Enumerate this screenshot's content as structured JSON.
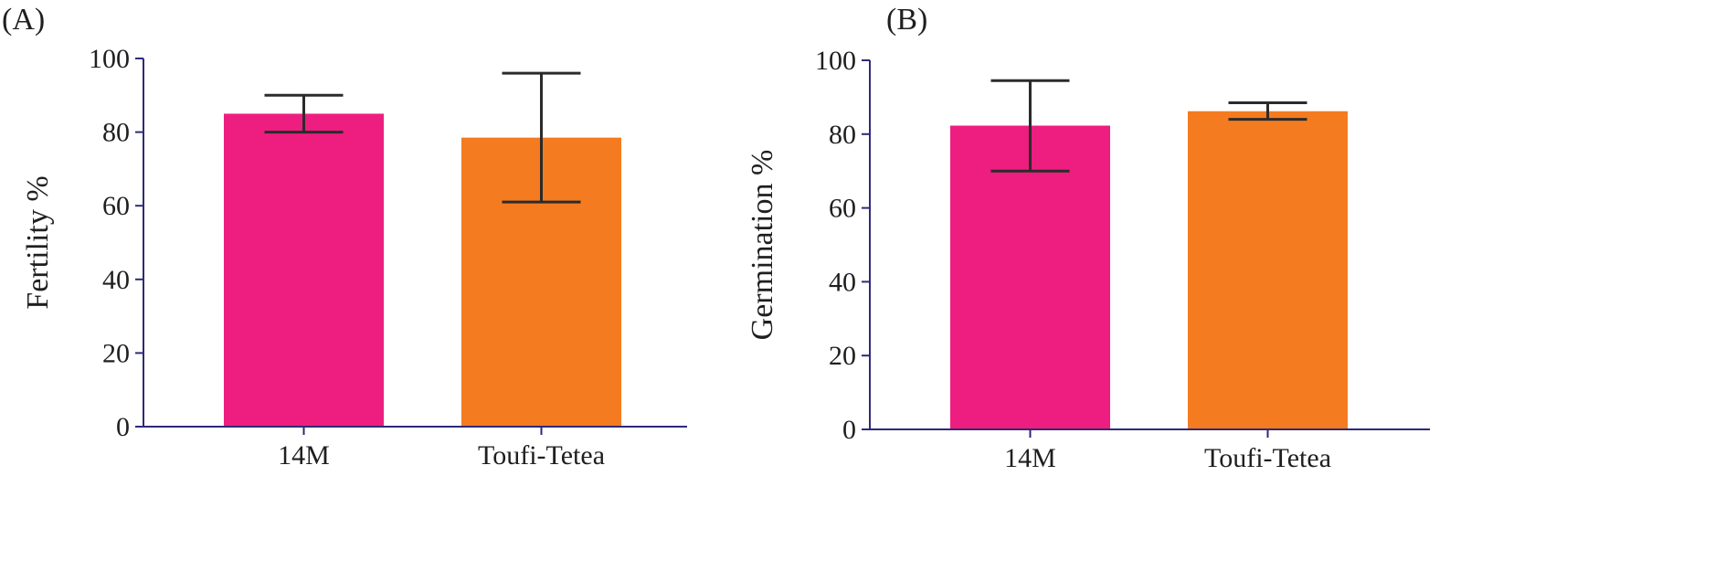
{
  "chart_data": [
    {
      "panel": "(A)",
      "type": "bar",
      "categories": [
        "14M",
        "Toufi-Tetea"
      ],
      "values": [
        85,
        78.5
      ],
      "error_low": [
        80,
        61
      ],
      "error_high": [
        90,
        96
      ],
      "colors": [
        "#ed1e7f",
        "#f47b20"
      ],
      "ylabel": "Fertility %",
      "xlabel": "",
      "ylim": [
        0,
        100
      ],
      "yticks": [
        "0",
        "20",
        "40",
        "60",
        "80",
        "100"
      ]
    },
    {
      "panel": "(B)",
      "type": "bar",
      "categories": [
        "14M",
        "Toufi-Tetea"
      ],
      "values": [
        82.3,
        86.2
      ],
      "error_low": [
        70,
        84
      ],
      "error_high": [
        94.5,
        88.5
      ],
      "colors": [
        "#ed1e7f",
        "#f47b20"
      ],
      "ylabel": "Germination %",
      "xlabel": "",
      "ylim": [
        0,
        100
      ],
      "yticks": [
        "0",
        "20",
        "40",
        "60",
        "80",
        "100"
      ]
    }
  ],
  "style": {
    "axis_color": "#2e2a78",
    "error_bar_color": "#2b2b2b"
  }
}
